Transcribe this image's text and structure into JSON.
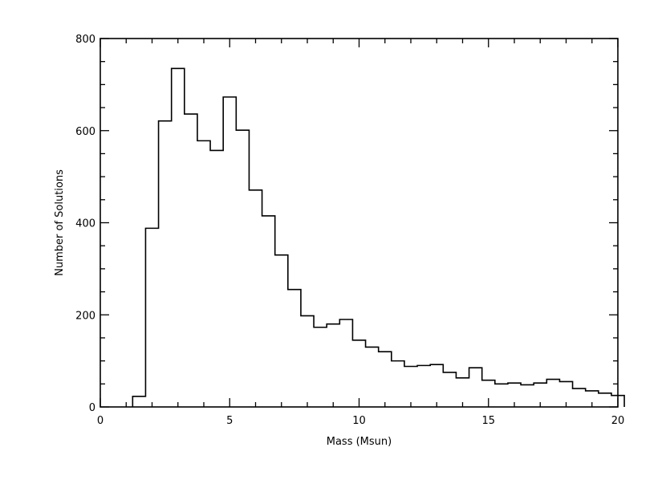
{
  "chart_data": {
    "type": "bar",
    "histogram": true,
    "xlabel": "Mass (Msun)",
    "ylabel": "Number of Solutions",
    "xlim": [
      0,
      20
    ],
    "ylim": [
      0,
      800
    ],
    "x_ticks": [
      0,
      5,
      10,
      15,
      20
    ],
    "x_tick_labels": [
      "0",
      "5",
      "10",
      "15",
      "20"
    ],
    "y_ticks": [
      0,
      200,
      400,
      600,
      800
    ],
    "y_tick_labels": [
      "0",
      "200",
      "400",
      "600",
      "800"
    ],
    "x_minor_step": 1,
    "y_minor_step": 50,
    "grid": false,
    "legend": "none",
    "bin_width": 0.5,
    "bin_starts": [
      1.25,
      1.75,
      2.25,
      2.75,
      3.25,
      3.75,
      4.25,
      4.75,
      5.25,
      5.75,
      6.25,
      6.75,
      7.25,
      7.75,
      8.25,
      8.75,
      9.25,
      9.75,
      10.25,
      10.75,
      11.25,
      11.75,
      12.25,
      12.75,
      13.25,
      13.75,
      14.25,
      14.75,
      15.25,
      15.75,
      16.25,
      16.75,
      17.25,
      17.75,
      18.25,
      18.75,
      19.25,
      19.75
    ],
    "values": [
      23,
      388,
      621,
      735,
      636,
      578,
      557,
      673,
      601,
      471,
      415,
      330,
      255,
      198,
      173,
      180,
      190,
      145,
      130,
      120,
      100,
      88,
      90,
      92,
      75,
      63,
      85,
      58,
      50,
      52,
      48,
      52,
      60,
      55,
      40,
      35,
      30,
      25
    ]
  }
}
